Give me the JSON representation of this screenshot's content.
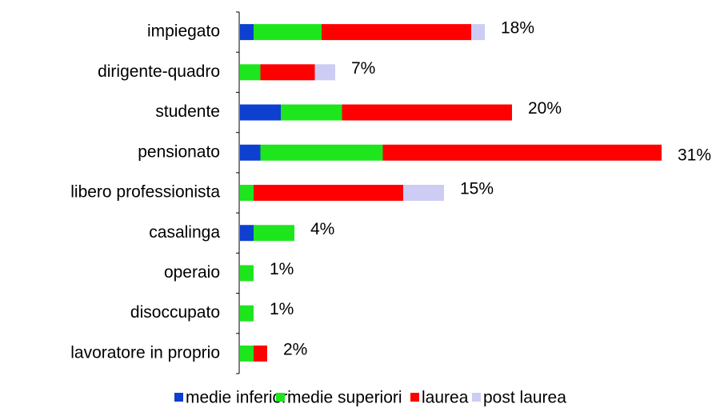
{
  "chart_data": {
    "type": "stacked-barh",
    "categories": [
      "impiegato",
      "dirigente-quadro",
      "studente",
      "pensionato",
      "libero professionista",
      "casalinga",
      "operaio",
      "disoccupato",
      "lavoratore in proprio"
    ],
    "series": [
      {
        "name": "medie inferiori",
        "color": "#0d3fd0",
        "values": [
          1,
          null,
          3,
          1.5,
          null,
          1,
          null,
          null,
          null
        ]
      },
      {
        "name": "medie superiori",
        "color": "#1de61d",
        "values": [
          5,
          1.5,
          4.5,
          9,
          1,
          3,
          1,
          1,
          1
        ]
      },
      {
        "name": "laurea",
        "color": "#ff0000",
        "values": [
          11,
          4,
          12.5,
          20.5,
          11,
          null,
          null,
          null,
          1
        ]
      },
      {
        "name": "post laurea",
        "color": "#ccccf5",
        "values": [
          1,
          1.5,
          null,
          null,
          3,
          null,
          null,
          null,
          null
        ]
      }
    ],
    "totals": [
      18,
      7,
      20,
      31,
      15,
      4,
      1,
      1,
      2
    ],
    "total_labels": [
      "18%",
      "7%",
      "20%",
      "31%",
      "15%",
      "4%",
      "1%",
      "1%",
      "2%"
    ],
    "xlim": [
      0,
      33
    ],
    "legend": "bottom"
  }
}
